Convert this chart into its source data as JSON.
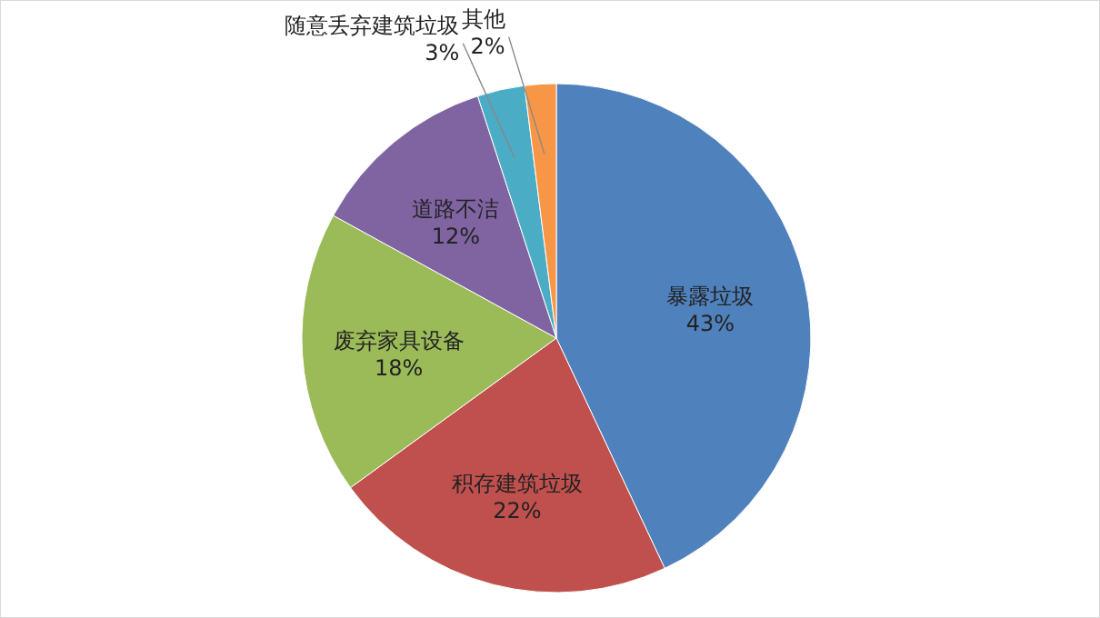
{
  "chart_data": {
    "type": "pie",
    "categories": [
      "暴露垃圾",
      "积存建筑垃圾",
      "废弃家具设备",
      "道路不洁",
      "随意丢弃建筑垃圾",
      "其他"
    ],
    "values": [
      43,
      22,
      18,
      12,
      3,
      2
    ],
    "value_labels": [
      "43%",
      "22%",
      "18%",
      "12%",
      "3%",
      "2%"
    ],
    "colors": [
      "#4f81bd",
      "#c0504d",
      "#9bbb59",
      "#8064a2",
      "#4bacc6",
      "#f79646"
    ]
  }
}
